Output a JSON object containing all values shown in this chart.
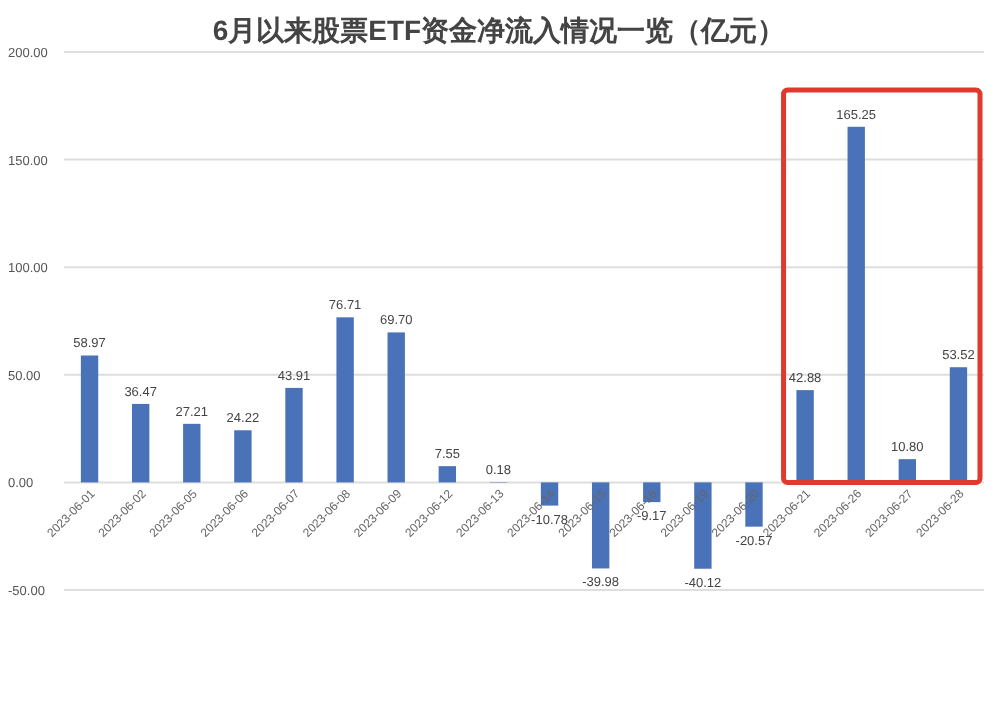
{
  "chart_data": {
    "type": "bar",
    "title": "6月以来股票ETF资金净流入情况一览（亿元）",
    "categories": [
      "2023-06-01",
      "2023-06-02",
      "2023-06-05",
      "2023-06-06",
      "2023-06-07",
      "2023-06-08",
      "2023-06-09",
      "2023-06-12",
      "2023-06-13",
      "2023-06-14",
      "2023-06-15",
      "2023-06-16",
      "2023-06-19",
      "2023-06-20",
      "2023-06-21",
      "2023-06-26",
      "2023-06-27",
      "2023-06-28"
    ],
    "values": [
      58.97,
      36.47,
      27.21,
      24.22,
      43.91,
      76.71,
      69.7,
      7.55,
      0.18,
      -10.78,
      -39.98,
      -9.17,
      -40.12,
      -20.57,
      42.88,
      165.25,
      10.8,
      53.52
    ],
    "value_labels": [
      "58.97",
      "36.47",
      "27.21",
      "24.22",
      "43.91",
      "76.71",
      "69.70",
      "7.55",
      "0.18",
      "-10.78",
      "-39.98",
      "-9.17",
      "-40.12",
      "-20.57",
      "42.88",
      "165.25",
      "10.80",
      "53.52"
    ],
    "color": "#4a72b8",
    "ylim": [
      -50,
      200
    ],
    "yticks": [
      {
        "value": -50,
        "label": "-50.00"
      },
      {
        "value": 0,
        "label": "0.00"
      },
      {
        "value": 50,
        "label": "50.00"
      },
      {
        "value": 100,
        "label": "100.00"
      },
      {
        "value": 150,
        "label": "150.00"
      },
      {
        "value": 200,
        "label": "200.00"
      }
    ],
    "grid": "y"
  }
}
